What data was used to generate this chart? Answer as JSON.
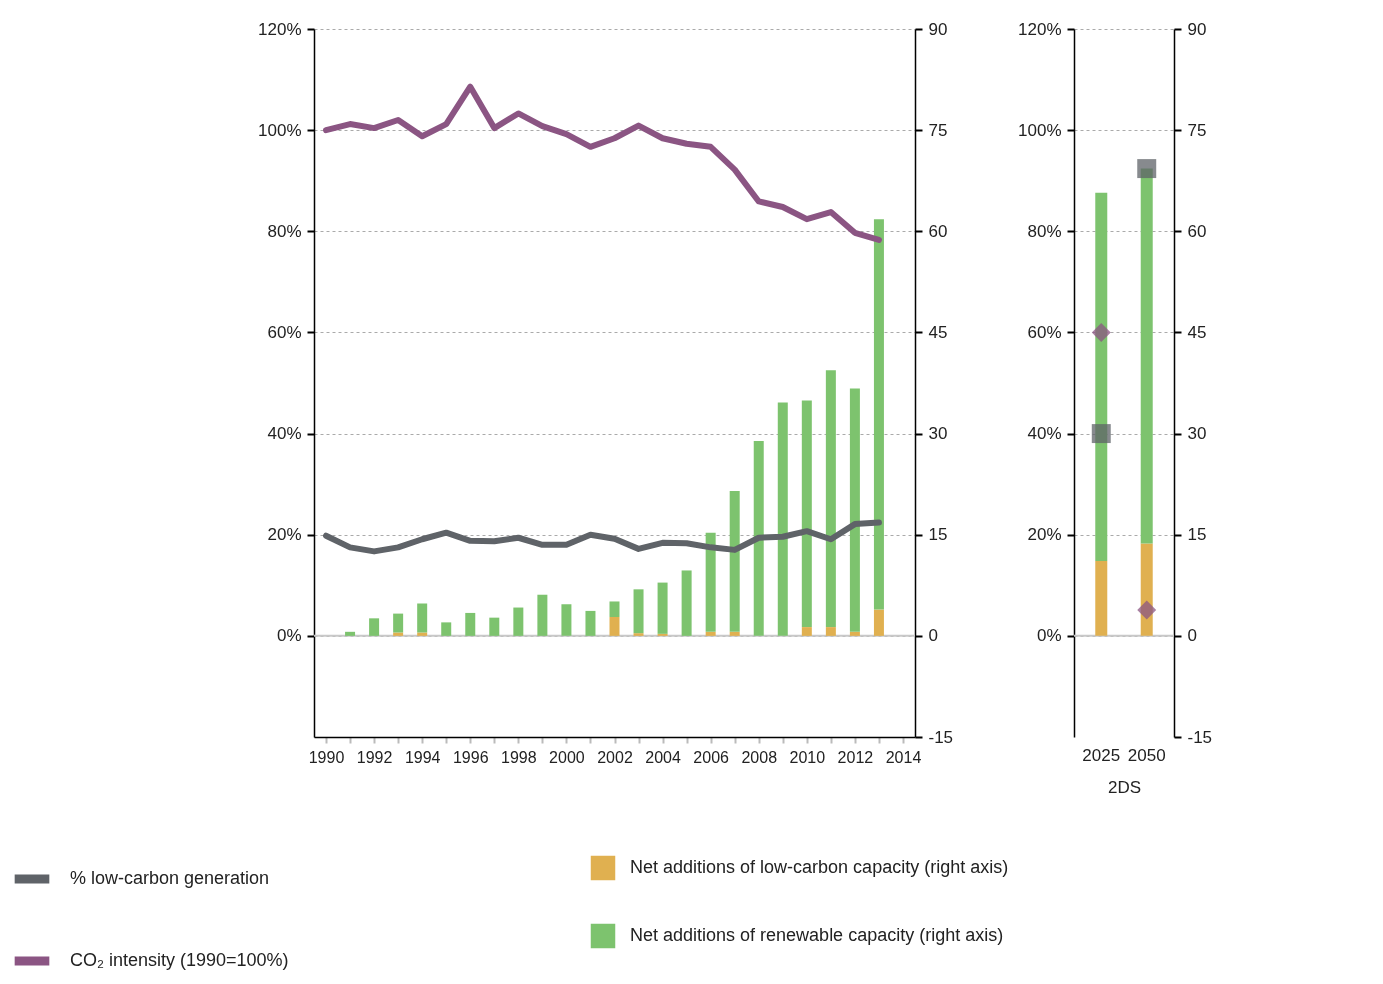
{
  "chart_data": [
    {
      "type": "bar",
      "stacked": true,
      "xlim": [
        1989.5,
        2014.5
      ],
      "xticks": [
        1990,
        {
          "value": 1991,
          "label": null
        },
        1992,
        {
          "value": 1993,
          "label": null
        },
        1994,
        {
          "value": 1995,
          "label": null
        },
        1996,
        {
          "value": 1997,
          "label": null
        },
        1998,
        {
          "value": 1999,
          "label": null
        },
        2000,
        {
          "value": 2001,
          "label": null
        },
        2002,
        {
          "value": 2003,
          "label": null
        },
        2004,
        {
          "value": 2005,
          "label": null
        },
        2006,
        {
          "value": 2007,
          "label": null
        },
        2008,
        {
          "value": 2009,
          "label": null
        },
        2010,
        {
          "value": 2011,
          "label": null
        },
        2012,
        {
          "value": 2013,
          "label": null
        },
        2014
      ],
      "ylim": [
        -20,
        120
      ],
      "yticks": [
        {
          "value": 0,
          "label": "0%"
        },
        {
          "value": 20,
          "label": "20%"
        },
        {
          "value": 40,
          "label": "40%"
        },
        {
          "value": 60,
          "label": "60%"
        },
        {
          "value": 80,
          "label": "80%"
        },
        {
          "value": 100,
          "label": "100%"
        },
        {
          "value": 120,
          "label": "120%"
        }
      ],
      "y2lim": [
        -15,
        90
      ],
      "y2ticks": [
        -15,
        0,
        15,
        30,
        45,
        60,
        75,
        90
      ],
      "grid": "y",
      "legend": "bottom",
      "line_style": "solid",
      "marker": "none",
      "ref_lines": [
        {
          "axis": "y",
          "value": 0,
          "color": "#c8c8c8"
        }
      ],
      "series": [
        {
          "name": "Net additions of low-carbon capacity (right axis)",
          "axis": "y2",
          "color": "#e0b050",
          "x": [
            1991,
            1992,
            1993,
            1994,
            1995,
            1996,
            1997,
            1998,
            1999,
            2000,
            2001,
            2002,
            2003,
            2004,
            2005,
            2006,
            2007,
            2008,
            2009,
            2010,
            2011,
            2012,
            2013
          ],
          "values": [
            0,
            0,
            0.5,
            0.5,
            0,
            0,
            0,
            0,
            0,
            0,
            0,
            2.8,
            0.4,
            0.3,
            0,
            0.6,
            0.6,
            0,
            0,
            1.3,
            1.3,
            0.6,
            3.9
          ]
        },
        {
          "name": "Net additions of renewable capacity (right axis)",
          "axis": "y2",
          "color": "#7dc36e",
          "x": [
            1991,
            1992,
            1993,
            1994,
            1995,
            1996,
            1997,
            1998,
            1999,
            2000,
            2001,
            2002,
            2003,
            2004,
            2005,
            2006,
            2007,
            2008,
            2009,
            2010,
            2011,
            2012,
            2013
          ],
          "values": [
            0.6,
            2.6,
            2.8,
            4.3,
            2.0,
            3.4,
            2.7,
            4.2,
            6.1,
            4.7,
            3.7,
            2.3,
            6.5,
            7.6,
            9.7,
            14.7,
            20.9,
            28.9,
            34.6,
            33.6,
            38.1,
            36.1,
            57.9
          ]
        },
        {
          "name": "% low-carbon generation",
          "type": "line",
          "color": "#5f6368",
          "x": [
            1990,
            1991,
            1992,
            1993,
            1994,
            1995,
            1996,
            1997,
            1998,
            1999,
            2000,
            2001,
            2002,
            2003,
            2004,
            2005,
            2006,
            2007,
            2008,
            2009,
            2010,
            2011,
            2012,
            2013
          ],
          "values": [
            19.8,
            17.5,
            16.7,
            17.5,
            19.1,
            20.4,
            18.8,
            18.7,
            19.4,
            18.0,
            18.0,
            20.0,
            19.2,
            17.2,
            18.4,
            18.3,
            17.5,
            17.0,
            19.4,
            19.6,
            20.7,
            19.1,
            22.1,
            22.4
          ]
        },
        {
          "name": "CO₂ intensity (1990=100%)",
          "type": "line",
          "color": "#8b5583",
          "x": [
            1990,
            1991,
            1992,
            1993,
            1994,
            1995,
            1996,
            1997,
            1998,
            1999,
            2000,
            2001,
            2002,
            2003,
            2004,
            2005,
            2006,
            2007,
            2008,
            2009,
            2010,
            2011,
            2012,
            2013
          ],
          "values": [
            100,
            101.2,
            100.4,
            102,
            98.8,
            101.2,
            108.6,
            100.4,
            103.3,
            100.8,
            99.2,
            96.7,
            98.4,
            100.9,
            98.4,
            97.3,
            96.7,
            92.2,
            85.9,
            84.8,
            82.4,
            83.8,
            79.7,
            78.3
          ]
        }
      ]
    },
    {
      "type": "bar",
      "stacked": true,
      "categories": [
        "2025",
        "2050"
      ],
      "xlabel": "2DS",
      "ylim": [
        -20,
        120
      ],
      "yticks": [
        {
          "value": 0,
          "label": "0%"
        },
        {
          "value": 20,
          "label": "20%"
        },
        {
          "value": 40,
          "label": "40%"
        },
        {
          "value": 60,
          "label": "60%"
        },
        {
          "value": 80,
          "label": "80%"
        },
        {
          "value": 100,
          "label": "100%"
        },
        {
          "value": 120,
          "label": "120%"
        }
      ],
      "y2lim": [
        -15,
        90
      ],
      "y2ticks": [
        -15,
        0,
        15,
        30,
        45,
        60,
        75,
        90
      ],
      "grid": "y",
      "ref_lines": [
        {
          "axis": "y",
          "value": 0,
          "color": "#c8c8c8"
        }
      ],
      "series": [
        {
          "axis": "y2",
          "color": "#e0b050",
          "values": [
            11.1,
            13.7
          ]
        },
        {
          "axis": "y2",
          "color": "#7dc36e",
          "values": [
            54.6,
            55.6
          ]
        },
        {
          "type": "scatter",
          "marker": "square",
          "color": "#5f6368",
          "values": [
            40,
            92.4
          ]
        },
        {
          "type": "scatter",
          "marker": "diamond",
          "color": "#8b5583",
          "values": [
            60,
            5.1
          ]
        }
      ]
    }
  ]
}
